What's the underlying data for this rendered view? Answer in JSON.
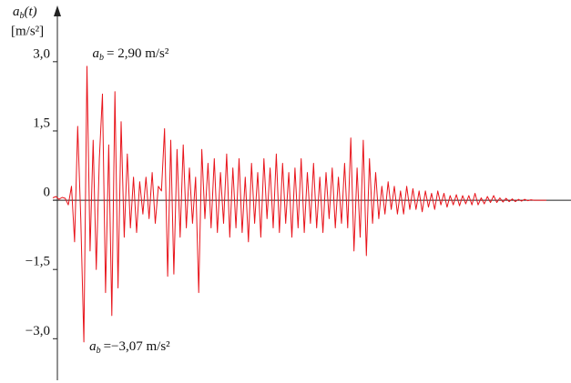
{
  "chart_data": {
    "type": "line",
    "y_label": {
      "symbol": "a",
      "subscript": "b",
      "argument": "(t)",
      "unit": "[m/s²]"
    },
    "annotations": [
      {
        "symbol": "a",
        "subscript": "b",
        "text": "= 2,90 m/s²",
        "value": 2.9
      },
      {
        "symbol": "a",
        "subscript": "b",
        "text": "=−3,07 m/s²",
        "value": -3.07
      }
    ],
    "color": "#e8141b",
    "ylim": [
      -3.9,
      4.1
    ],
    "yticks": [
      {
        "value": 3,
        "label": "3,0"
      },
      {
        "value": 1.5,
        "label": "1,5"
      },
      0,
      {
        "value": -1.5,
        "label": "−1,5"
      },
      {
        "value": -3,
        "label": "−3,0"
      }
    ],
    "values": [
      0.05,
      0.08,
      0.02,
      0.06,
      0.04,
      -0.1,
      0.3,
      -0.9,
      1.6,
      -0.4,
      -3.07,
      2.9,
      -1.1,
      1.3,
      -1.5,
      0.9,
      2.3,
      -2.0,
      1.2,
      -2.5,
      2.35,
      -1.9,
      1.7,
      -0.8,
      1.0,
      -0.6,
      0.5,
      -0.7,
      0.4,
      -0.3,
      0.5,
      -0.4,
      0.6,
      -0.5,
      0.3,
      0.2,
      1.55,
      -1.65,
      1.3,
      -1.6,
      1.1,
      -0.8,
      1.2,
      -0.6,
      0.7,
      -0.5,
      0.5,
      -2.0,
      1.1,
      -0.4,
      0.8,
      -0.6,
      0.9,
      -0.7,
      0.6,
      -0.5,
      1.0,
      -0.8,
      0.7,
      -0.6,
      0.9,
      -0.7,
      0.5,
      -0.9,
      0.8,
      -0.5,
      0.6,
      -0.8,
      0.9,
      -0.4,
      0.7,
      -0.6,
      1.0,
      -0.7,
      0.8,
      -0.5,
      0.6,
      -0.8,
      0.7,
      -0.6,
      0.9,
      -0.7,
      0.6,
      -0.5,
      0.8,
      -0.6,
      0.5,
      -0.7,
      0.6,
      -0.4,
      0.7,
      -0.6,
      0.5,
      -0.5,
      0.8,
      -0.6,
      1.35,
      -1.1,
      0.7,
      -0.8,
      1.3,
      -1.2,
      0.9,
      -0.5,
      0.6,
      -0.4,
      0.3,
      -0.3,
      0.4,
      -0.2,
      0.3,
      -0.3,
      0.2,
      -0.3,
      0.3,
      -0.2,
      0.25,
      -0.2,
      0.2,
      -0.25,
      0.2,
      -0.15,
      0.15,
      -0.2,
      0.2,
      -0.1,
      0.15,
      -0.15,
      0.1,
      -0.1,
      0.12,
      -0.12,
      0.1,
      -0.08,
      0.1,
      -0.1,
      0.15,
      -0.1,
      0.05,
      -0.08,
      0.08,
      -0.05,
      0.1,
      -0.05,
      0.05,
      -0.04,
      0.04,
      -0.03,
      0.03,
      -0.03,
      0.02,
      -0.02,
      0.02,
      -0.01,
      0.01,
      0,
      0,
      0,
      0,
      0
    ]
  }
}
